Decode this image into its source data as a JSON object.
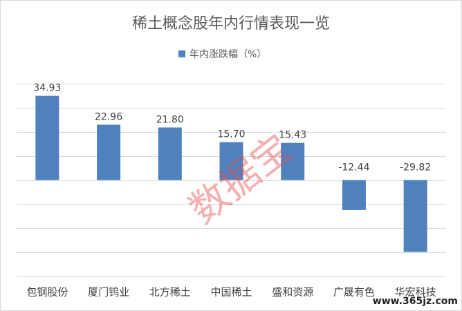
{
  "chart_data": {
    "type": "bar",
    "title": "稀土概念股年内行情表现一览",
    "legend": "年内涨跌幅（%）",
    "categories": [
      "包钢股份",
      "厦门钨业",
      "北方稀土",
      "中国稀土",
      "盛和资源",
      "广晟有色",
      "华宏科技"
    ],
    "series": [
      {
        "name": "年内涨跌幅（%）",
        "color": "#4f81bd",
        "values": [
          34.93,
          22.96,
          21.8,
          15.7,
          15.43,
          -12.44,
          -29.82
        ],
        "value_labels": [
          "34.93",
          "22.96",
          "21.80",
          "15.70",
          "15.43",
          "-12.44",
          "-29.82"
        ]
      }
    ],
    "ylim": [
      -40,
      40
    ],
    "yticks": [
      -40,
      -30,
      -20,
      -10,
      0,
      10,
      20,
      30,
      40
    ],
    "grid": true,
    "annotations": [
      "数据宝",
      "www.365jz.com"
    ]
  }
}
